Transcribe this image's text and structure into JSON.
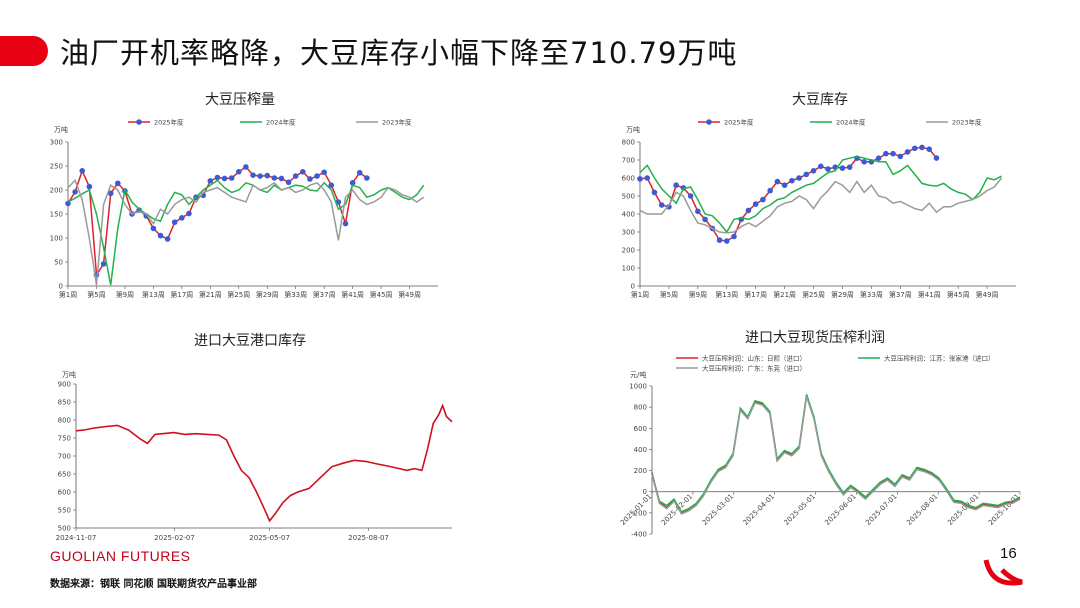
{
  "header": {
    "title": "油厂开机率略降，大豆库存小幅下降至710.79万吨",
    "accent_color": "#e60012"
  },
  "footer": {
    "brand": "GUOLIAN FUTURES",
    "source": "数据来源：钢联  同花顺  国联期货农产品事业部",
    "page_number": "16"
  },
  "chart_data": [
    {
      "id": "crush",
      "type": "line",
      "title": "大豆压榨量",
      "unit": "万吨",
      "ylim": [
        0,
        300
      ],
      "yticks": [
        0,
        50,
        100,
        150,
        200,
        250,
        300
      ],
      "x_tick_labels": [
        "第1周",
        "第5周",
        "第9周",
        "第13周",
        "第17周",
        "第21周",
        "第25周",
        "第29周",
        "第33周",
        "第37周",
        "第41周",
        "第45周",
        "第49周"
      ],
      "x_tick_weeks": [
        1,
        5,
        9,
        13,
        17,
        21,
        25,
        29,
        33,
        37,
        41,
        45,
        49
      ],
      "xlim": [
        1,
        53
      ],
      "legend_position": "top",
      "series": [
        {
          "name": "2025年度",
          "color": "#e0202a",
          "markers": true,
          "start_week": 1,
          "values": [
            172,
            196,
            240,
            207,
            23,
            46,
            193,
            214,
            198,
            150,
            158,
            146,
            120,
            105,
            98,
            133,
            142,
            151,
            185,
            189,
            219,
            226,
            224,
            225,
            238,
            248,
            231,
            229,
            230,
            225,
            224,
            216,
            229,
            238,
            223,
            229,
            237,
            210,
            175,
            130,
            215,
            236,
            225
          ]
        },
        {
          "name": "2024年度",
          "color": "#22b14c",
          "markers": false,
          "start_week": 1,
          "values": [
            175,
            183,
            192,
            200,
            150,
            80,
            2,
            120,
            200,
            175,
            160,
            150,
            140,
            135,
            170,
            195,
            190,
            170,
            185,
            200,
            210,
            220,
            205,
            195,
            200,
            215,
            210,
            200,
            195,
            210,
            200,
            205,
            210,
            208,
            200,
            198,
            215,
            200,
            160,
            170,
            210,
            205,
            185,
            190,
            200,
            205,
            195,
            185,
            180,
            190,
            210
          ]
        },
        {
          "name": "2023年度",
          "color": "#9a9a9a",
          "markers": false,
          "start_week": 1,
          "values": [
            205,
            220,
            180,
            100,
            2,
            170,
            210,
            200,
            170,
            150,
            155,
            150,
            130,
            160,
            150,
            170,
            180,
            185,
            175,
            195,
            200,
            205,
            195,
            185,
            180,
            175,
            210,
            200,
            205,
            215,
            200,
            205,
            195,
            200,
            210,
            215,
            200,
            175,
            95,
            185,
            200,
            180,
            170,
            175,
            185,
            205,
            200,
            190,
            185,
            175,
            185
          ]
        }
      ]
    },
    {
      "id": "soy_stock",
      "type": "line",
      "title": "大豆库存",
      "unit": "万吨",
      "ylim": [
        0,
        800
      ],
      "yticks": [
        0,
        100,
        200,
        300,
        400,
        500,
        600,
        700,
        800
      ],
      "x_tick_labels": [
        "第1周",
        "第5周",
        "第9周",
        "第13周",
        "第17周",
        "第21周",
        "第25周",
        "第29周",
        "第33周",
        "第37周",
        "第41周",
        "第45周",
        "第49周"
      ],
      "x_tick_weeks": [
        1,
        5,
        9,
        13,
        17,
        21,
        25,
        29,
        33,
        37,
        41,
        45,
        49
      ],
      "xlim": [
        1,
        53
      ],
      "legend_position": "top",
      "series": [
        {
          "name": "2025年度",
          "color": "#e0202a",
          "markers": true,
          "start_week": 1,
          "values": [
            595,
            600,
            520,
            450,
            440,
            560,
            545,
            500,
            415,
            370,
            320,
            255,
            250,
            275,
            370,
            420,
            455,
            480,
            530,
            580,
            560,
            585,
            600,
            620,
            640,
            665,
            650,
            660,
            655,
            660,
            710,
            690,
            690,
            710,
            735,
            735,
            720,
            745,
            765,
            770,
            760,
            711
          ]
        },
        {
          "name": "2024年度",
          "color": "#22b14c",
          "markers": false,
          "start_week": 1,
          "values": [
            630,
            670,
            600,
            540,
            500,
            460,
            540,
            550,
            480,
            400,
            390,
            350,
            300,
            370,
            380,
            370,
            390,
            430,
            450,
            480,
            490,
            520,
            540,
            560,
            570,
            600,
            630,
            640,
            700,
            710,
            720,
            710,
            700,
            690,
            690,
            620,
            640,
            670,
            620,
            570,
            560,
            555,
            570,
            540,
            520,
            510,
            480,
            520,
            600,
            590,
            610
          ]
        },
        {
          "name": "2023年度",
          "color": "#9a9a9a",
          "markers": false,
          "start_week": 1,
          "values": [
            420,
            400,
            400,
            400,
            450,
            520,
            500,
            420,
            350,
            340,
            320,
            300,
            295,
            300,
            330,
            350,
            330,
            360,
            390,
            440,
            460,
            470,
            500,
            480,
            430,
            490,
            530,
            580,
            560,
            520,
            580,
            520,
            560,
            500,
            490,
            460,
            470,
            450,
            430,
            420,
            460,
            410,
            440,
            440,
            460,
            470,
            480,
            500,
            530,
            550,
            600
          ]
        }
      ]
    },
    {
      "id": "port_stock",
      "type": "line",
      "title": "进口大豆港口库存",
      "unit": "万吨",
      "ylim": [
        500,
        900
      ],
      "yticks": [
        500,
        550,
        600,
        650,
        700,
        750,
        800,
        850,
        900
      ],
      "x_tick_labels": [
        "2024-11-07",
        "2025-02-07",
        "2025-05-07",
        "2025-08-07"
      ],
      "x_tick_pos": [
        0.0,
        0.262,
        0.515,
        0.778
      ],
      "legend_position": "none",
      "series": [
        {
          "name": "",
          "color": "#d0101e",
          "x": [
            0,
            0.02,
            0.05,
            0.08,
            0.11,
            0.14,
            0.17,
            0.19,
            0.21,
            0.23,
            0.26,
            0.29,
            0.32,
            0.35,
            0.38,
            0.4,
            0.42,
            0.44,
            0.46,
            0.48,
            0.5,
            0.515,
            0.53,
            0.55,
            0.57,
            0.59,
            0.62,
            0.65,
            0.68,
            0.71,
            0.74,
            0.77,
            0.8,
            0.83,
            0.86,
            0.88,
            0.9,
            0.92,
            0.935,
            0.95,
            0.965,
            0.975,
            0.985,
            0.995,
            1.0
          ],
          "values": [
            770,
            772,
            778,
            782,
            785,
            772,
            748,
            735,
            760,
            762,
            765,
            760,
            762,
            760,
            758,
            745,
            700,
            660,
            640,
            600,
            555,
            520,
            540,
            570,
            590,
            600,
            610,
            640,
            670,
            680,
            688,
            685,
            678,
            672,
            665,
            660,
            665,
            660,
            720,
            790,
            815,
            840,
            810,
            800,
            795
          ]
        }
      ]
    },
    {
      "id": "crush_margin",
      "type": "line",
      "title": "进口大豆现货压榨利润",
      "unit": "元/吨",
      "ylim": [
        -400,
        1000
      ],
      "yticks": [
        -400,
        -200,
        0,
        200,
        400,
        600,
        800,
        1000
      ],
      "x_tick_labels": [
        "2025-01-01",
        "2025-01-11",
        "2025-01-21",
        "2025-02-01",
        "2025-02-11",
        "2025-02-21",
        "2025-03-01",
        "2025-03-11",
        "2025-03-21",
        "2025-04-01",
        "2025-04-11",
        "2025-04-21",
        "2025-05-01",
        "2025-05-11",
        "2025-05-21",
        "2025-06-01",
        "2025-06-11",
        "2025-06-21",
        "2025-07-01",
        "2025-07-11",
        "2025-07-21",
        "2025-08-01",
        "2025-08-11",
        "2025-08-21",
        "2025-09-01",
        "2025-09-11",
        "2025-09-21",
        "2025-10-01"
      ],
      "x_tick_show": [
        "2025-01-01",
        "2025-02-01",
        "2025-03-01",
        "2025-04-01",
        "2025-05-01",
        "2025-06-01",
        "2025-07-01",
        "2025-08-01",
        "2025-09-01",
        "2025-10-01"
      ],
      "legend_position": "top",
      "series": [
        {
          "name": "大豆压榨利润：山东：日照（进口）",
          "color": "#e0202a",
          "x": [
            0,
            0.02,
            0.04,
            0.06,
            0.08,
            0.1,
            0.12,
            0.14,
            0.16,
            0.18,
            0.2,
            0.22,
            0.24,
            0.26,
            0.28,
            0.3,
            0.32,
            0.34,
            0.36,
            0.38,
            0.4,
            0.42,
            0.44,
            0.46,
            0.48,
            0.5,
            0.52,
            0.54,
            0.56,
            0.58,
            0.6,
            0.62,
            0.64,
            0.66,
            0.68,
            0.7,
            0.72,
            0.74,
            0.76,
            0.78,
            0.8,
            0.82,
            0.84,
            0.86,
            0.88,
            0.9,
            0.92,
            0.94,
            0.96,
            0.98,
            1.0
          ],
          "values": [
            180,
            -100,
            -150,
            -80,
            -200,
            -170,
            -120,
            -30,
            100,
            200,
            240,
            350,
            780,
            700,
            850,
            830,
            750,
            300,
            380,
            350,
            420,
            910,
            700,
            350,
            200,
            80,
            -20,
            50,
            0,
            -60,
            10,
            80,
            120,
            60,
            150,
            120,
            220,
            200,
            170,
            120,
            20,
            -90,
            -100,
            -140,
            -160,
            -120,
            -130,
            -140,
            -110,
            -100,
            -60
          ]
        },
        {
          "name": "大豆压榨利润：江苏：张家港（进口）",
          "color": "#22b14c",
          "x": [
            0,
            0.02,
            0.04,
            0.06,
            0.08,
            0.1,
            0.12,
            0.14,
            0.16,
            0.18,
            0.2,
            0.22,
            0.24,
            0.26,
            0.28,
            0.3,
            0.32,
            0.34,
            0.36,
            0.38,
            0.4,
            0.42,
            0.44,
            0.46,
            0.48,
            0.5,
            0.52,
            0.54,
            0.56,
            0.58,
            0.6,
            0.62,
            0.64,
            0.66,
            0.68,
            0.7,
            0.72,
            0.74,
            0.76,
            0.78,
            0.8,
            0.82,
            0.84,
            0.86,
            0.88,
            0.9,
            0.92,
            0.94,
            0.96,
            0.98,
            1.0
          ],
          "values": [
            170,
            -90,
            -130,
            -70,
            -190,
            -160,
            -110,
            -20,
            110,
            210,
            250,
            360,
            790,
            710,
            860,
            840,
            760,
            310,
            390,
            360,
            430,
            920,
            710,
            360,
            210,
            90,
            -10,
            60,
            10,
            -50,
            20,
            90,
            130,
            70,
            160,
            130,
            230,
            210,
            180,
            130,
            30,
            -80,
            -90,
            -130,
            -150,
            -110,
            -120,
            -130,
            -100,
            -90,
            -50
          ]
        },
        {
          "name": "大豆压榨利润：广东：东莞（进口）",
          "color": "#9a9a9a",
          "x": [
            0,
            0.02,
            0.04,
            0.06,
            0.08,
            0.1,
            0.12,
            0.14,
            0.16,
            0.18,
            0.2,
            0.22,
            0.24,
            0.26,
            0.28,
            0.3,
            0.32,
            0.34,
            0.36,
            0.38,
            0.4,
            0.42,
            0.44,
            0.46,
            0.48,
            0.5,
            0.52,
            0.54,
            0.56,
            0.58,
            0.6,
            0.62,
            0.64,
            0.66,
            0.68,
            0.7,
            0.72,
            0.74,
            0.76,
            0.78,
            0.8,
            0.82,
            0.84,
            0.86,
            0.88,
            0.9,
            0.92,
            0.94,
            0.96,
            0.98,
            1.0
          ],
          "values": [
            160,
            -110,
            -160,
            -90,
            -210,
            -180,
            -130,
            -40,
            90,
            190,
            230,
            340,
            770,
            690,
            840,
            820,
            740,
            290,
            370,
            340,
            410,
            900,
            690,
            340,
            190,
            70,
            -30,
            40,
            -10,
            -70,
            0,
            70,
            110,
            50,
            140,
            110,
            210,
            190,
            160,
            110,
            10,
            -100,
            -110,
            -150,
            -170,
            -130,
            -140,
            -150,
            -120,
            -110,
            -70
          ]
        }
      ]
    }
  ]
}
